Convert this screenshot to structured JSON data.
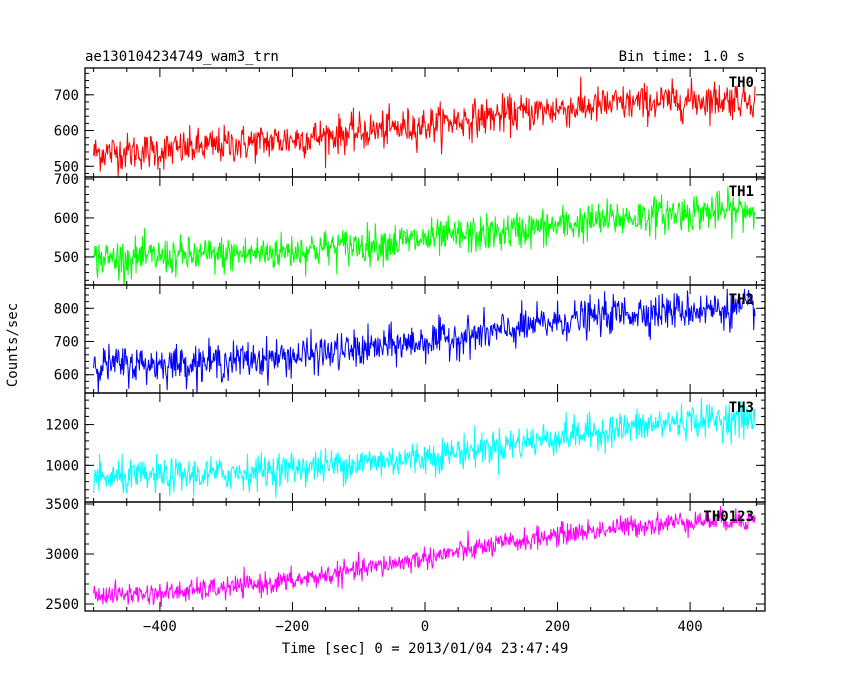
{
  "chart_data": {
    "type": "line",
    "title": "ae130104234749_wam3_trn",
    "bin_time_label": "Bin time: 1.0 s",
    "xlabel": "Time [sec] 0 = 2013/01/04 23:47:49",
    "ylabel": "Counts/sec",
    "xlim": [
      -513,
      513
    ],
    "xticks": [
      -400,
      -200,
      0,
      200,
      400
    ],
    "xtick_labels": [
      "−400",
      "−200",
      "0",
      "200",
      "400"
    ],
    "grid": false,
    "panels": [
      {
        "name": "TH0",
        "color": "#ff0000",
        "ylim": [
          470,
          775
        ],
        "yticks": [
          500,
          600,
          700
        ],
        "ytick_labels": [
          "500",
          "600",
          "700"
        ],
        "trend_x": [
          -500,
          -400,
          -300,
          -200,
          -100,
          0,
          100,
          200,
          300,
          400,
          500
        ],
        "trend_y": [
          538,
          543,
          560,
          575,
          595,
          615,
          640,
          660,
          675,
          685,
          690
        ],
        "noise": 26
      },
      {
        "name": "TH1",
        "color": "#00ff00",
        "ylim": [
          428,
          705
        ],
        "yticks": [
          500,
          600,
          700
        ],
        "ytick_labels": [
          "500",
          "600",
          "700"
        ],
        "trend_x": [
          -500,
          -400,
          -300,
          -200,
          -100,
          0,
          100,
          200,
          300,
          400,
          500
        ],
        "trend_y": [
          495,
          500,
          505,
          515,
          530,
          545,
          560,
          580,
          600,
          615,
          620
        ],
        "noise": 24
      },
      {
        "name": "TH2",
        "color": "#0000ff",
        "ylim": [
          545,
          870
        ],
        "yticks": [
          600,
          700,
          800
        ],
        "ytick_labels": [
          "600",
          "700",
          "800"
        ],
        "trend_x": [
          -500,
          -400,
          -300,
          -200,
          -100,
          0,
          100,
          200,
          300,
          400,
          500
        ],
        "trend_y": [
          630,
          632,
          640,
          655,
          675,
          700,
          725,
          760,
          785,
          795,
          800
        ],
        "noise": 28
      },
      {
        "name": "TH3",
        "color": "#00ffff",
        "ylim": [
          820,
          1355
        ],
        "yticks": [
          1000,
          1200
        ],
        "ytick_labels": [
          "1000",
          "1200"
        ],
        "trend_x": [
          -500,
          -400,
          -300,
          -200,
          -100,
          0,
          100,
          200,
          300,
          400,
          500
        ],
        "trend_y": [
          935,
          945,
          960,
          985,
          1010,
          1040,
          1090,
          1140,
          1180,
          1220,
          1230
        ],
        "noise": 42
      },
      {
        "name": "TH0123",
        "color": "#ff00ff",
        "ylim": [
          2430,
          3520
        ],
        "yticks": [
          2500,
          3000,
          3500
        ],
        "ytick_labels": [
          "2500",
          "3000",
          "3500"
        ],
        "trend_x": [
          -500,
          -400,
          -300,
          -200,
          -100,
          0,
          100,
          200,
          300,
          400,
          500
        ],
        "trend_y": [
          2590,
          2605,
          2660,
          2730,
          2840,
          2960,
          3080,
          3190,
          3270,
          3330,
          3345
        ],
        "noise": 55
      }
    ]
  }
}
